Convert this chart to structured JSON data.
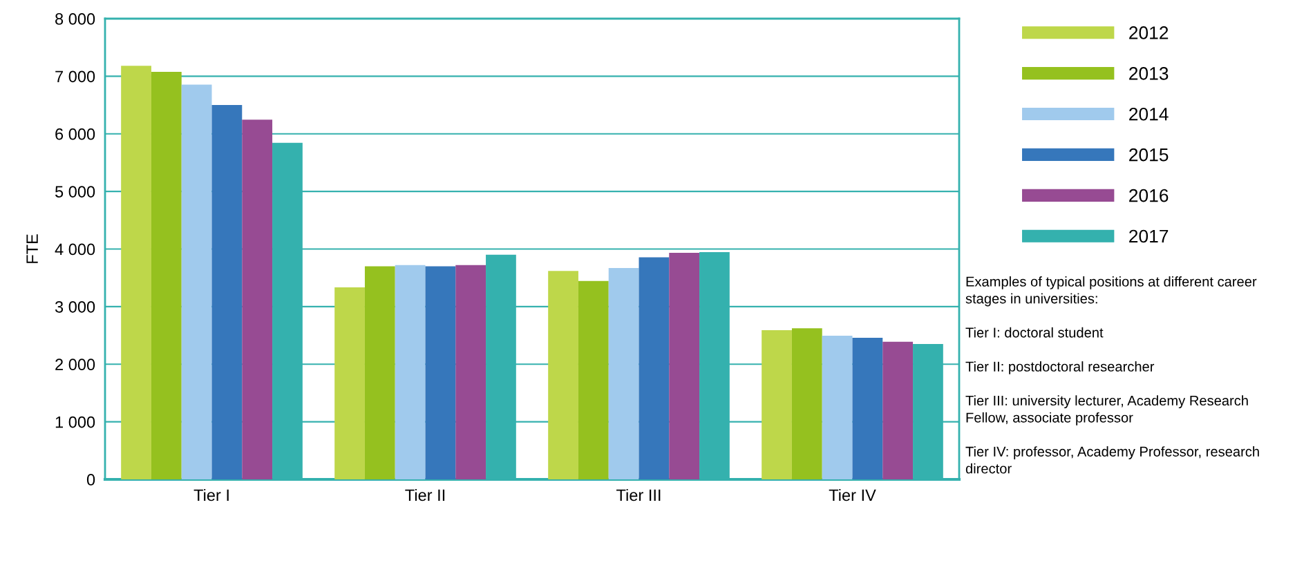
{
  "chart_data": {
    "type": "bar",
    "ylabel": "FTE",
    "categories": [
      "Tier I",
      "Tier II",
      "Tier III",
      "Tier IV"
    ],
    "series": [
      {
        "name": "2012",
        "color": "#bed74a",
        "values": [
          7180,
          3335,
          3620,
          2590
        ]
      },
      {
        "name": "2013",
        "color": "#95c11f",
        "values": [
          7075,
          3700,
          3445,
          2625
        ]
      },
      {
        "name": "2014",
        "color": "#a0caed",
        "values": [
          6855,
          3720,
          3670,
          2495
        ]
      },
      {
        "name": "2015",
        "color": "#3677bb",
        "values": [
          6500,
          3700,
          3855,
          2460
        ]
      },
      {
        "name": "2016",
        "color": "#974b93",
        "values": [
          6245,
          3720,
          3935,
          2390
        ]
      },
      {
        "name": "2017",
        "color": "#34b1ae",
        "values": [
          5845,
          3900,
          3945,
          2350
        ]
      }
    ],
    "ylim": [
      0,
      8000
    ],
    "yticks": [
      {
        "value": 0,
        "label": "0"
      },
      {
        "value": 1000,
        "label": "1 000"
      },
      {
        "value": 2000,
        "label": "2 000"
      },
      {
        "value": 3000,
        "label": "3 000"
      },
      {
        "value": 4000,
        "label": "4 000"
      },
      {
        "value": 5000,
        "label": "5 000"
      },
      {
        "value": 6000,
        "label": "6 000"
      },
      {
        "value": 7000,
        "label": "7 000"
      },
      {
        "value": 8000,
        "label": "8 000"
      }
    ],
    "grid": "y",
    "legend": "right",
    "annotations": [
      "Examples of typical positions at different career stages in universities:\n\nTier I: doctoral student\n\nTier II: postdoctoral researcher\n\nTier III: university lecturer, Academy Research Fellow, associate professor\n\nTier IV: professor, Academy Professor, research director"
    ]
  }
}
